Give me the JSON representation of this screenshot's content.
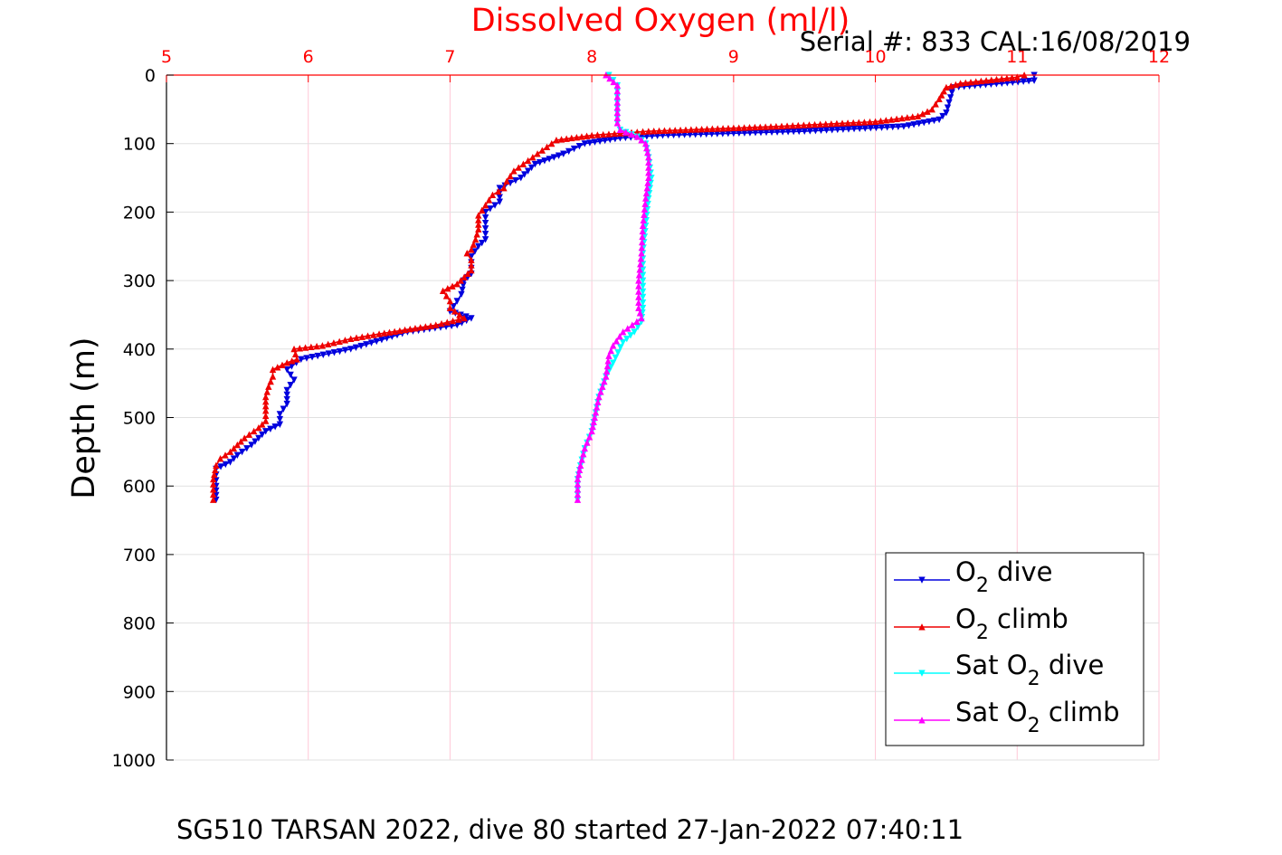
{
  "chart_data": {
    "type": "line",
    "title": "Dissolved Oxygen (ml/l)",
    "serial_label": "Serial #: 833  CAL:16/08/2019",
    "footer": "SG510 TARSAN 2022, dive 80 started 27-Jan-2022 07:40:11",
    "xlabel": "Dissolved Oxygen (ml/l)",
    "ylabel": "Depth (m)",
    "xlim": [
      5,
      12
    ],
    "ylim": [
      0,
      1000
    ],
    "y_reversed": true,
    "x_axis_position": "top",
    "grid": true,
    "xticks": [
      "5",
      "6",
      "7",
      "8",
      "9",
      "10",
      "11",
      "12"
    ],
    "yticks": [
      "0",
      "100",
      "200",
      "300",
      "400",
      "500",
      "600",
      "700",
      "800",
      "900",
      "1000"
    ],
    "legend_position": "bottom-right",
    "colors": {
      "title": "#ff0000",
      "xaxis": "#ff0000",
      "grid": "#ffc8d8",
      "o2_dive": "#0000dd",
      "o2_climb": "#ee0000",
      "sat_dive": "#00ffff",
      "sat_climb": "#ff00ff"
    },
    "legend": [
      {
        "prefix": "O",
        "sub": "2",
        "suffix": " dive"
      },
      {
        "prefix": "O",
        "sub": "2",
        "suffix": " climb"
      },
      {
        "prefix": "Sat O",
        "sub": "2",
        "suffix": " dive"
      },
      {
        "prefix": "Sat O",
        "sub": "2",
        "suffix": " climb"
      }
    ],
    "series": [
      {
        "key": "o2_dive",
        "marker": "down",
        "points": [
          [
            11.12,
            0
          ],
          [
            11.12,
            8
          ],
          [
            10.55,
            18
          ],
          [
            10.52,
            40
          ],
          [
            10.5,
            55
          ],
          [
            10.45,
            65
          ],
          [
            10.2,
            75
          ],
          [
            9.5,
            82
          ],
          [
            8.5,
            88
          ],
          [
            8.2,
            92
          ],
          [
            7.95,
            100
          ],
          [
            7.8,
            115
          ],
          [
            7.6,
            130
          ],
          [
            7.5,
            150
          ],
          [
            7.35,
            165
          ],
          [
            7.35,
            185
          ],
          [
            7.25,
            200
          ],
          [
            7.25,
            240
          ],
          [
            7.2,
            250
          ],
          [
            7.15,
            265
          ],
          [
            7.15,
            290
          ],
          [
            7.1,
            300
          ],
          [
            7.08,
            320
          ],
          [
            7.05,
            330
          ],
          [
            7.0,
            345
          ],
          [
            7.15,
            355
          ],
          [
            7.05,
            365
          ],
          [
            6.7,
            375
          ],
          [
            6.3,
            400
          ],
          [
            5.95,
            415
          ],
          [
            5.85,
            430
          ],
          [
            5.9,
            445
          ],
          [
            5.85,
            460
          ],
          [
            5.85,
            480
          ],
          [
            5.8,
            495
          ],
          [
            5.8,
            510
          ],
          [
            5.7,
            520
          ],
          [
            5.6,
            540
          ],
          [
            5.5,
            555
          ],
          [
            5.45,
            565
          ],
          [
            5.35,
            575
          ],
          [
            5.35,
            600
          ],
          [
            5.35,
            620
          ]
        ]
      },
      {
        "key": "o2_climb",
        "marker": "up",
        "points": [
          [
            11.05,
            0
          ],
          [
            11.0,
            3
          ],
          [
            10.6,
            12
          ],
          [
            10.5,
            18
          ],
          [
            10.45,
            35
          ],
          [
            10.4,
            50
          ],
          [
            10.3,
            60
          ],
          [
            10.0,
            68
          ],
          [
            9.3,
            75
          ],
          [
            8.4,
            82
          ],
          [
            8.0,
            88
          ],
          [
            7.75,
            95
          ],
          [
            7.65,
            110
          ],
          [
            7.55,
            125
          ],
          [
            7.45,
            140
          ],
          [
            7.4,
            155
          ],
          [
            7.38,
            165
          ],
          [
            7.3,
            175
          ],
          [
            7.25,
            190
          ],
          [
            7.2,
            205
          ],
          [
            7.2,
            225
          ],
          [
            7.18,
            240
          ],
          [
            7.15,
            255
          ],
          [
            7.12,
            260
          ],
          [
            7.15,
            270
          ],
          [
            7.15,
            285
          ],
          [
            7.1,
            295
          ],
          [
            7.05,
            305
          ],
          [
            6.95,
            315
          ],
          [
            7.0,
            330
          ],
          [
            7.0,
            340
          ],
          [
            7.1,
            355
          ],
          [
            6.9,
            365
          ],
          [
            6.5,
            378
          ],
          [
            6.3,
            385
          ],
          [
            6.1,
            395
          ],
          [
            5.9,
            400
          ],
          [
            5.92,
            415
          ],
          [
            5.85,
            420
          ],
          [
            5.75,
            430
          ],
          [
            5.75,
            440
          ],
          [
            5.72,
            455
          ],
          [
            5.7,
            470
          ],
          [
            5.7,
            490
          ],
          [
            5.7,
            505
          ],
          [
            5.65,
            515
          ],
          [
            5.55,
            530
          ],
          [
            5.45,
            550
          ],
          [
            5.38,
            560
          ],
          [
            5.35,
            570
          ],
          [
            5.33,
            590
          ],
          [
            5.33,
            620
          ]
        ]
      },
      {
        "key": "sat_dive",
        "marker": "down",
        "points": [
          [
            8.12,
            0
          ],
          [
            8.18,
            15
          ],
          [
            8.18,
            40
          ],
          [
            8.18,
            70
          ],
          [
            8.2,
            80
          ],
          [
            8.32,
            90
          ],
          [
            8.38,
            100
          ],
          [
            8.4,
            120
          ],
          [
            8.42,
            150
          ],
          [
            8.4,
            180
          ],
          [
            8.38,
            220
          ],
          [
            8.36,
            260
          ],
          [
            8.36,
            300
          ],
          [
            8.36,
            340
          ],
          [
            8.35,
            360
          ],
          [
            8.3,
            375
          ],
          [
            8.22,
            390
          ],
          [
            8.15,
            420
          ],
          [
            8.1,
            440
          ],
          [
            8.05,
            470
          ],
          [
            8.02,
            500
          ],
          [
            8.0,
            520
          ],
          [
            7.95,
            545
          ],
          [
            7.92,
            570
          ],
          [
            7.9,
            590
          ],
          [
            7.9,
            620
          ]
        ]
      },
      {
        "key": "sat_climb",
        "marker": "up",
        "points": [
          [
            8.1,
            0
          ],
          [
            8.18,
            15
          ],
          [
            8.18,
            40
          ],
          [
            8.18,
            70
          ],
          [
            8.2,
            80
          ],
          [
            8.32,
            90
          ],
          [
            8.38,
            100
          ],
          [
            8.4,
            120
          ],
          [
            8.4,
            150
          ],
          [
            8.38,
            180
          ],
          [
            8.36,
            220
          ],
          [
            8.35,
            260
          ],
          [
            8.33,
            300
          ],
          [
            8.33,
            340
          ],
          [
            8.35,
            355
          ],
          [
            8.22,
            375
          ],
          [
            8.15,
            395
          ],
          [
            8.12,
            410
          ],
          [
            8.1,
            440
          ],
          [
            8.05,
            470
          ],
          [
            8.02,
            500
          ],
          [
            8.0,
            520
          ],
          [
            7.95,
            545
          ],
          [
            7.92,
            570
          ],
          [
            7.9,
            590
          ],
          [
            7.9,
            620
          ]
        ]
      }
    ]
  }
}
